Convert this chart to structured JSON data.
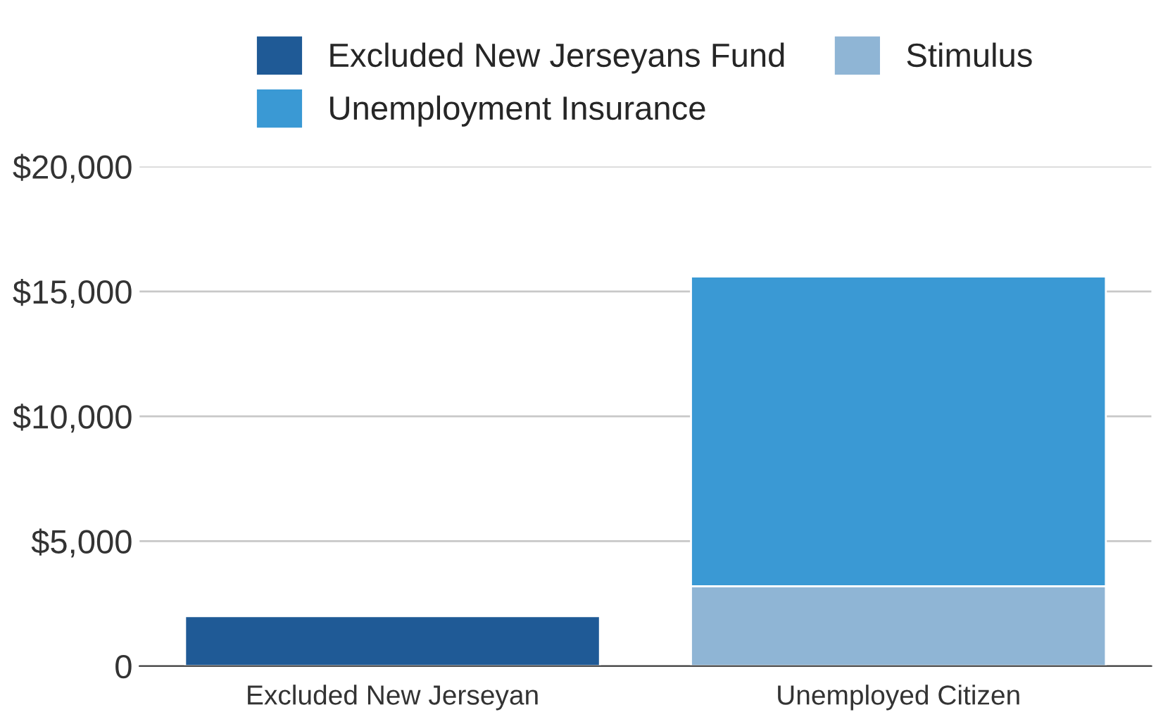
{
  "chart_data": {
    "type": "bar",
    "stacked": true,
    "categories": [
      "Excluded New Jerseyan",
      "Unemployed Citizen"
    ],
    "series": [
      {
        "name": "Excluded New Jerseyans Fund",
        "color": "#1f5a96",
        "values": [
          2000,
          null
        ]
      },
      {
        "name": "Stimulus",
        "color": "#8fb5d5",
        "values": [
          null,
          3200
        ]
      },
      {
        "name": "Unemployment Insurance",
        "color": "#3a99d4",
        "values": [
          null,
          12400
        ]
      }
    ],
    "ylim": [
      0,
      20000
    ],
    "yticks": [
      {
        "value": 0,
        "label": "0"
      },
      {
        "value": 5000,
        "label": "$5,000"
      },
      {
        "value": 10000,
        "label": "$10,000"
      },
      {
        "value": 15000,
        "label": "$15,000"
      },
      {
        "value": 20000,
        "label": "$20,000"
      }
    ],
    "grid": "y",
    "legend": "top"
  }
}
